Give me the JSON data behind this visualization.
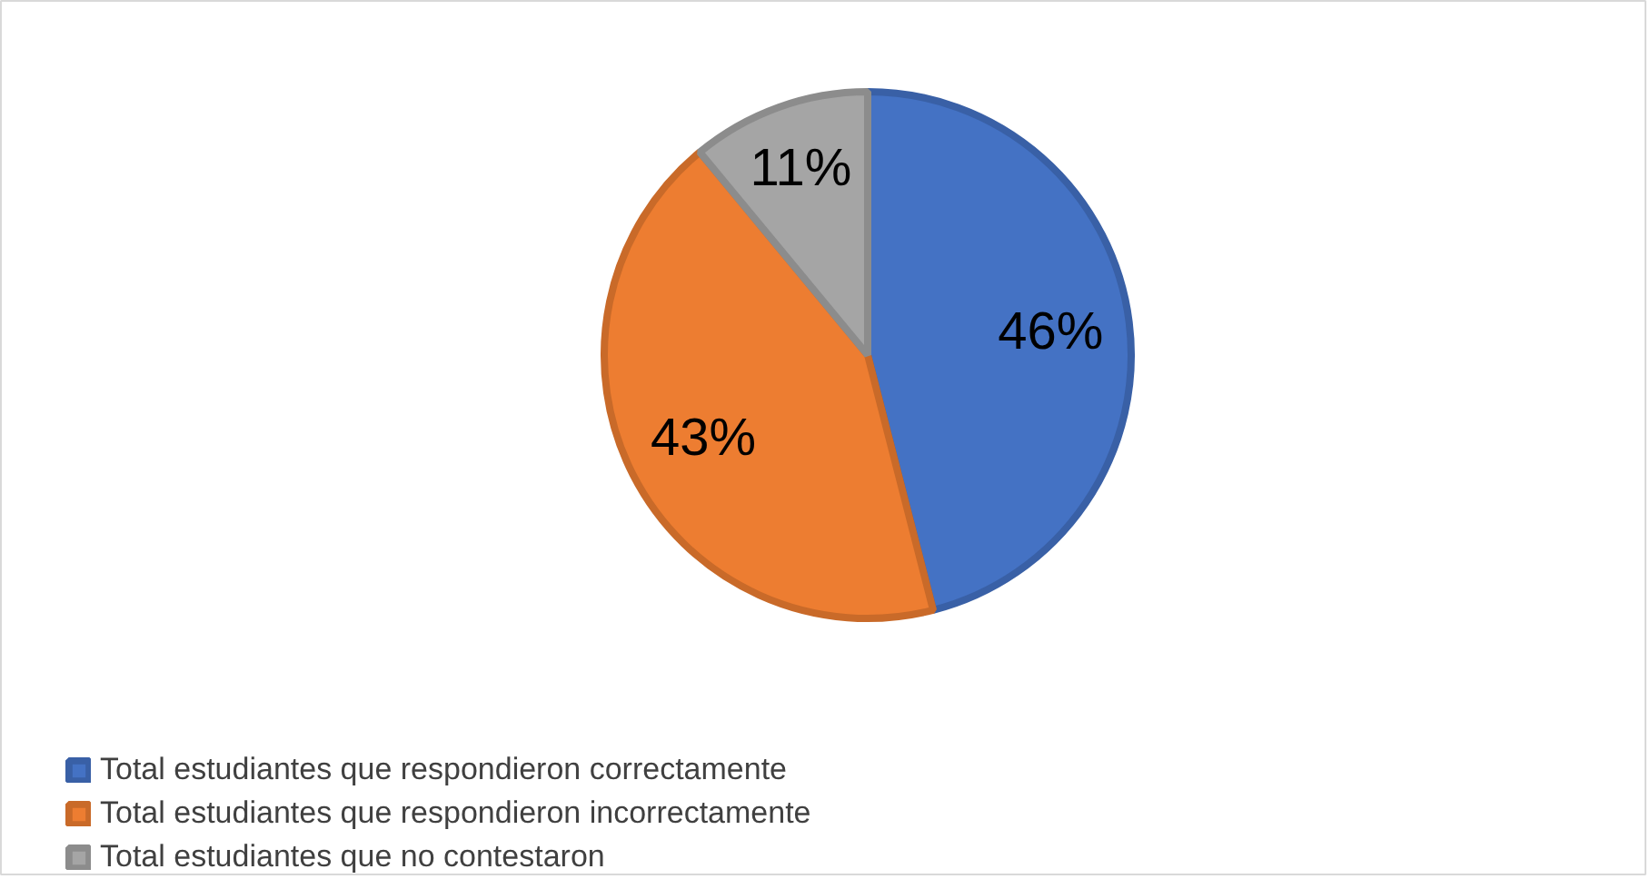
{
  "chart_data": {
    "type": "pie",
    "categories": [
      "Total estudiantes que respondieron correctamente",
      "Total estudiantes que respondieron incorrectamente",
      "Total estudiantes que no contestaron"
    ],
    "values": [
      46,
      43,
      11
    ],
    "colors": [
      "#4472c4",
      "#ed7d31",
      "#a5a5a5"
    ],
    "value_labels": [
      "46%",
      "43%",
      "11%"
    ],
    "legend": "bottom left"
  }
}
